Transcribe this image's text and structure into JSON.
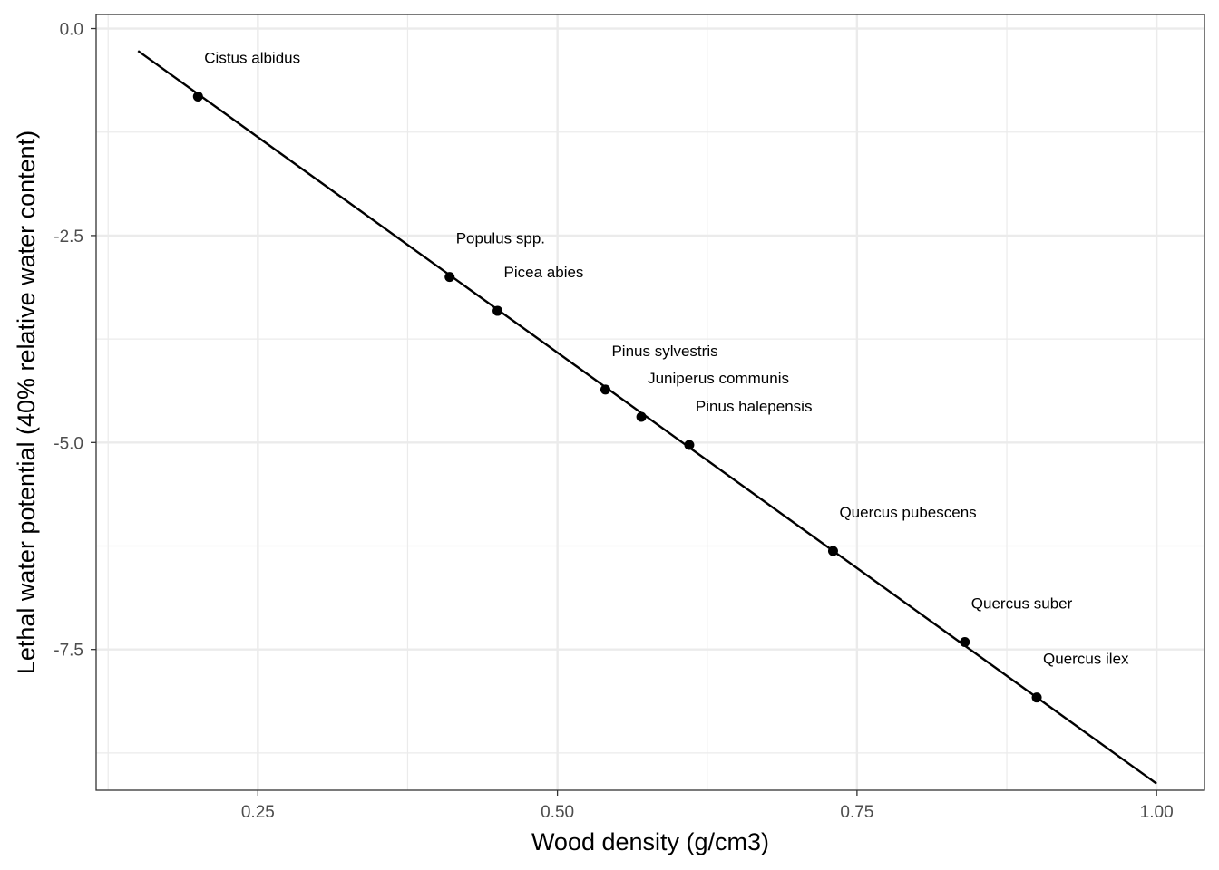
{
  "chart_data": {
    "type": "scatter",
    "xlabel": "Wood density (g/cm3)",
    "ylabel": "Lethal water potential (40% relative water content)",
    "xlim": [
      0.115,
      1.04
    ],
    "ylim": [
      -9.2,
      0.17
    ],
    "x_ticks": [
      0.25,
      0.5,
      0.75,
      1.0
    ],
    "x_tick_labels": [
      "0.25",
      "0.50",
      "0.75",
      "1.00"
    ],
    "y_ticks": [
      0.0,
      -2.5,
      -5.0,
      -7.5
    ],
    "y_tick_labels": [
      "0.0",
      "-2.5",
      "-5.0",
      "-7.5"
    ],
    "grid": true,
    "points": [
      {
        "label": "Cistus albidus",
        "x": 0.2,
        "y": -0.82
      },
      {
        "label": "Populus spp.",
        "x": 0.41,
        "y": -3.0
      },
      {
        "label": "Picea abies",
        "x": 0.45,
        "y": -3.41
      },
      {
        "label": "Pinus sylvestris",
        "x": 0.54,
        "y": -4.36
      },
      {
        "label": "Juniperus communis",
        "x": 0.57,
        "y": -4.69
      },
      {
        "label": "Pinus halepensis",
        "x": 0.61,
        "y": -5.03
      },
      {
        "label": "Quercus pubescens",
        "x": 0.73,
        "y": -6.31
      },
      {
        "label": "Quercus suber",
        "x": 0.84,
        "y": -7.41
      },
      {
        "label": "Quercus ilex",
        "x": 0.9,
        "y": -8.08
      }
    ],
    "fit_line": {
      "x": [
        0.15,
        1.0
      ],
      "y": [
        -0.27,
        -9.12
      ]
    }
  }
}
